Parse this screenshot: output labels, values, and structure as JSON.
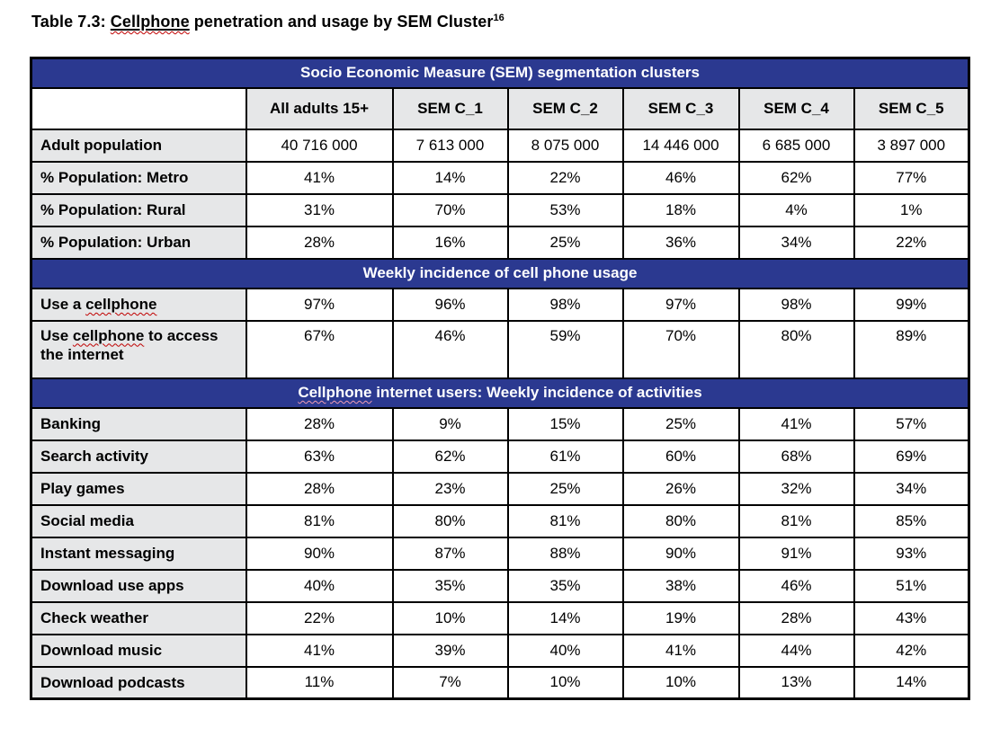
{
  "page": {
    "title": {
      "prefix": "Table 7.3: ",
      "underlined_word": "Cellphone",
      "rest": " penetration and usage by SEM Cluster",
      "superscript": "16"
    }
  },
  "colors": {
    "header_navy": "#2B3990",
    "label_gray": "#E6E7E8",
    "border_color": "#000000",
    "squiggle_red": "#C00000",
    "squiggle_pink": "#F09CB4"
  },
  "table": {
    "columns": [
      "",
      "All adults 15+",
      "SEM C_1",
      "SEM C_2",
      "SEM C_3",
      "SEM C_4",
      "SEM C_5"
    ],
    "sections": [
      {
        "header": "Socio Economic Measure (SEM) segmentation clusters",
        "rows": [
          {
            "label": "Adult population",
            "values": [
              "40 716 000",
              "7 613 000",
              "8 075 000",
              "14 446 000",
              "6 685 000",
              "3 897 000"
            ]
          },
          {
            "label": "% Population: Metro",
            "values": [
              "41%",
              "14%",
              "22%",
              "46%",
              "62%",
              "77%"
            ]
          },
          {
            "label": "% Population: Rural",
            "values": [
              "31%",
              "70%",
              "53%",
              "18%",
              "4%",
              "1%"
            ]
          },
          {
            "label": "% Population: Urban",
            "values": [
              "28%",
              "16%",
              "25%",
              "36%",
              "34%",
              "22%"
            ]
          }
        ]
      },
      {
        "header": "Weekly incidence of cell phone usage",
        "rows": [
          {
            "label": "Use a cellphone",
            "misspelled_word": "cellphone",
            "values": [
              "97%",
              "96%",
              "98%",
              "97%",
              "98%",
              "99%"
            ]
          },
          {
            "label": "Use cellphone to access the internet",
            "misspelled_word": "cellphone",
            "tall": true,
            "values": [
              "67%",
              "46%",
              "59%",
              "70%",
              "80%",
              "89%"
            ]
          }
        ]
      },
      {
        "header": "Cellphone internet users: Weekly incidence of activities",
        "header_misspelled_word": "Cellphone",
        "rows": [
          {
            "label": "Banking",
            "values": [
              "28%",
              "9%",
              "15%",
              "25%",
              "41%",
              "57%"
            ]
          },
          {
            "label": "Search activity",
            "values": [
              "63%",
              "62%",
              "61%",
              "60%",
              "68%",
              "69%"
            ]
          },
          {
            "label": "Play games",
            "values": [
              "28%",
              "23%",
              "25%",
              "26%",
              "32%",
              "34%"
            ]
          },
          {
            "label": "Social media",
            "values": [
              "81%",
              "80%",
              "81%",
              "80%",
              "81%",
              "85%"
            ]
          },
          {
            "label": "Instant messaging",
            "values": [
              "90%",
              "87%",
              "88%",
              "90%",
              "91%",
              "93%"
            ]
          },
          {
            "label": "Download use apps",
            "values": [
              "40%",
              "35%",
              "35%",
              "38%",
              "46%",
              "51%"
            ]
          },
          {
            "label": "Check weather",
            "values": [
              "22%",
              "10%",
              "14%",
              "19%",
              "28%",
              "43%"
            ]
          },
          {
            "label": "Download music",
            "values": [
              "41%",
              "39%",
              "40%",
              "41%",
              "44%",
              "42%"
            ]
          },
          {
            "label": "Download podcasts",
            "values": [
              "11%",
              "7%",
              "10%",
              "10%",
              "13%",
              "14%"
            ]
          }
        ]
      }
    ]
  }
}
